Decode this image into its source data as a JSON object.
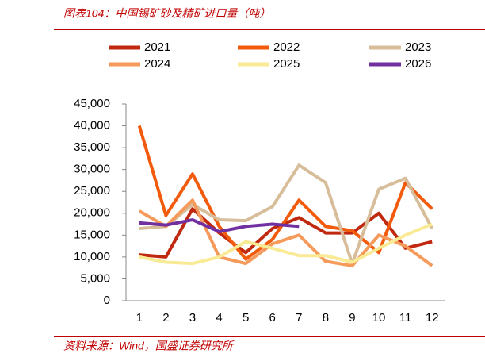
{
  "header": {
    "title": "图表104：中国锡矿砂及精矿进口量（吨）"
  },
  "chart_data": {
    "type": "line",
    "categories": [
      "1",
      "2",
      "3",
      "4",
      "5",
      "6",
      "7",
      "8",
      "9",
      "10",
      "11",
      "12"
    ],
    "series": [
      {
        "name": "2021",
        "color": "#c0280f",
        "values": [
          10500,
          10000,
          21000,
          15500,
          11000,
          16500,
          19000,
          15500,
          15500,
          20000,
          12000,
          13500
        ]
      },
      {
        "name": "2022",
        "color": "#f25a0c",
        "values": [
          40000,
          19500,
          29000,
          17000,
          9500,
          14000,
          23000,
          17000,
          16000,
          11000,
          27000,
          21000
        ]
      },
      {
        "name": "2023",
        "color": "#d7bd99",
        "values": [
          16500,
          17000,
          22000,
          18500,
          18300,
          21500,
          31000,
          27000,
          8500,
          25500,
          28000,
          16500
        ]
      },
      {
        "name": "2024",
        "color": "#f59a5a",
        "values": [
          20500,
          17000,
          23000,
          10000,
          8500,
          13000,
          15000,
          9000,
          8000,
          15000,
          12500,
          8000
        ]
      },
      {
        "name": "2025",
        "color": "#f9ea95",
        "values": [
          10000,
          8800,
          8500,
          10000,
          13500,
          12000,
          10300,
          10300,
          8800,
          12000,
          15000,
          17500
        ]
      },
      {
        "name": "2026",
        "color": "#7030a0",
        "values": [
          17800,
          17300,
          18500,
          15800,
          17000,
          17500,
          17000,
          null,
          null,
          null,
          null,
          null
        ]
      }
    ],
    "ylim": [
      0,
      45000
    ],
    "yticks": [
      0,
      {
        "value": 5000,
        "label": "5,000"
      },
      {
        "value": 10000,
        "label": "10,000"
      },
      {
        "value": 15000,
        "label": "15,000"
      },
      {
        "value": 20000,
        "label": "20,000"
      },
      {
        "value": 25000,
        "label": "25,000"
      },
      {
        "value": 30000,
        "label": "30,000"
      },
      {
        "value": 35000,
        "label": "35,000"
      },
      {
        "value": 40000,
        "label": "40,000"
      },
      {
        "value": 45000,
        "label": "45,000"
      }
    ]
  },
  "footer": {
    "source": "资料来源：Wind，国盛证券研究所"
  }
}
